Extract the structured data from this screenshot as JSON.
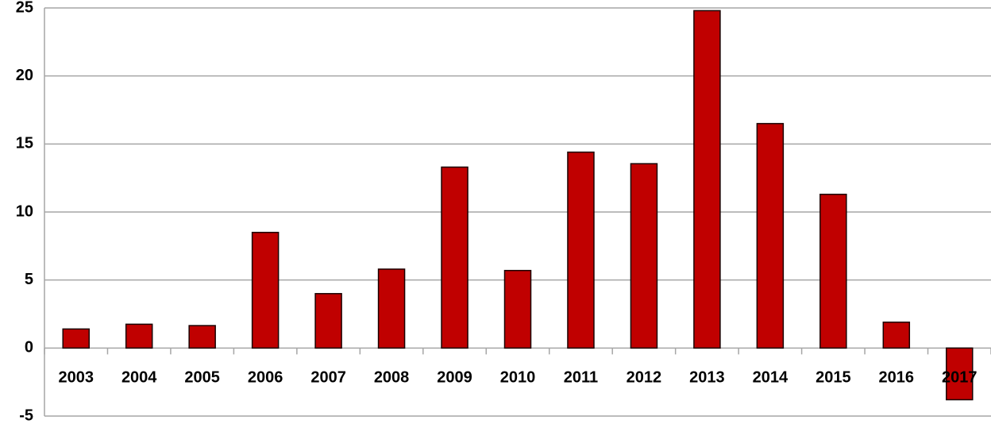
{
  "chart_data": {
    "type": "bar",
    "categories": [
      "2003",
      "2004",
      "2005",
      "2006",
      "2007",
      "2008",
      "2009",
      "2010",
      "2011",
      "2012",
      "2013",
      "2014",
      "2015",
      "2016",
      "2017"
    ],
    "values": [
      1.4,
      1.75,
      1.65,
      8.5,
      4.0,
      5.8,
      13.3,
      5.7,
      14.4,
      13.55,
      24.8,
      16.5,
      11.3,
      1.9,
      -3.8
    ],
    "color": "#c00000",
    "ylim": [
      -5,
      25
    ],
    "yticks": [
      -5,
      0,
      5,
      10,
      15,
      20,
      25
    ],
    "grid": true
  }
}
